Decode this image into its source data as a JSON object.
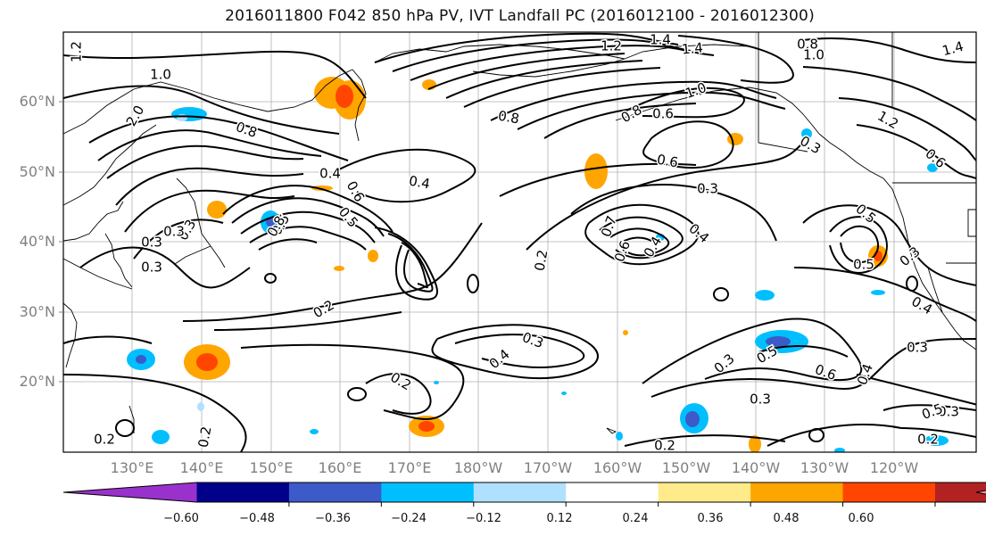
{
  "title": "2016011800 F042 850 hPa PV, IVT Landfall PC (2016012100 - 2016012300)",
  "lat_labels": [
    "60°N",
    "50°N",
    "40°N",
    "30°N",
    "20°N"
  ],
  "lon_labels": [
    "130°E",
    "140°E",
    "150°E",
    "160°E",
    "170°E",
    "180°W",
    "170°W",
    "160°W",
    "150°W",
    "140°W",
    "130°W",
    "120°W"
  ],
  "colorbar": {
    "colors": [
      "#9932cc",
      "#00008b",
      "#3c5ac8",
      "#00bfff",
      "#b0e0ff",
      "#ffffff",
      "#ffeb8a",
      "#ffa500",
      "#ff4500",
      "#b22222",
      "#ff88aa"
    ],
    "tick_labels": [
      "−0.60",
      "−0.48",
      "−0.36",
      "−0.24",
      "−0.12",
      "0.12",
      "0.24",
      "0.36",
      "0.48",
      "0.60"
    ]
  },
  "contour_labels": [
    "1.2",
    "1.0",
    "2.0",
    "0.8",
    "0.4",
    "0.3",
    "0.6",
    "0.5",
    "0.4",
    "0.3",
    "1.2",
    "1.4",
    "1.4",
    "0.8",
    "1.0",
    "1.4",
    "0.8",
    "0.8",
    "1.0",
    "0.6",
    "0.6",
    "0.3",
    "0.4",
    "1.2",
    "0.5",
    "0.3",
    "0.2",
    "0.7",
    "0.6",
    "0.4",
    "0.5",
    "0.3",
    "0.5",
    "0.4",
    "0.8",
    "0.3",
    "0.2",
    "0.3",
    "0.4",
    "0.2",
    "0.2",
    "0.3",
    "0.5",
    "0.6",
    "0.4",
    "0.3",
    "0.3",
    "0.2",
    "0.5",
    "0.2",
    "0.2",
    "0.3",
    "0.3",
    "0.6"
  ]
}
